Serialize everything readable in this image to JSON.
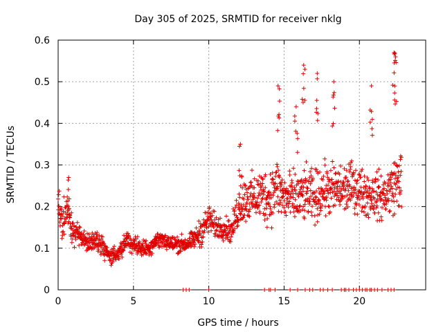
{
  "chart_data": {
    "type": "scatter",
    "title": "Day 305 of 2025, SRMTID for receiver nklg",
    "xlabel": "GPS time / hours",
    "ylabel": "SRMTID / TECUs",
    "xlim": [
      0,
      24.4
    ],
    "ylim": [
      0,
      0.6
    ],
    "xticks": [
      0,
      5,
      10,
      15,
      20
    ],
    "yticks": [
      0,
      0.1,
      0.2,
      0.3,
      0.4,
      0.5,
      0.6
    ],
    "grid": true,
    "marker": "plus",
    "color": "#e00000",
    "series": [
      {
        "name": "SRMTID",
        "profile_x": [
          0,
          0.3,
          0.6,
          1.0,
          1.5,
          2.0,
          2.5,
          3.0,
          3.5,
          4.0,
          4.5,
          5.0,
          5.5,
          6.0,
          6.5,
          7.0,
          7.5,
          8.0,
          8.5,
          9.0,
          9.5,
          10.0,
          10.5,
          11.0,
          11.5,
          12.0,
          12.5,
          13.0,
          13.5,
          14.0,
          14.5,
          15.0,
          15.5,
          16.0,
          16.5,
          17.0,
          17.5,
          18.0,
          18.5,
          19.0,
          19.5,
          20.0,
          20.5,
          21.0,
          21.5,
          22.0,
          22.5,
          22.8
        ],
        "profile_median": [
          0.2,
          0.16,
          0.19,
          0.14,
          0.13,
          0.11,
          0.12,
          0.1,
          0.08,
          0.08,
          0.12,
          0.11,
          0.1,
          0.1,
          0.12,
          0.12,
          0.11,
          0.11,
          0.11,
          0.12,
          0.14,
          0.17,
          0.15,
          0.15,
          0.14,
          0.2,
          0.22,
          0.22,
          0.23,
          0.22,
          0.25,
          0.22,
          0.22,
          0.22,
          0.23,
          0.22,
          0.24,
          0.24,
          0.24,
          0.24,
          0.25,
          0.24,
          0.23,
          0.23,
          0.22,
          0.24,
          0.26,
          0.27
        ],
        "profile_spread": [
          0.05,
          0.06,
          0.06,
          0.05,
          0.04,
          0.04,
          0.04,
          0.04,
          0.03,
          0.03,
          0.03,
          0.03,
          0.03,
          0.03,
          0.03,
          0.03,
          0.03,
          0.03,
          0.03,
          0.03,
          0.05,
          0.05,
          0.04,
          0.04,
          0.04,
          0.07,
          0.08,
          0.08,
          0.09,
          0.1,
          0.1,
          0.09,
          0.09,
          0.09,
          0.09,
          0.09,
          0.09,
          0.09,
          0.09,
          0.09,
          0.08,
          0.08,
          0.08,
          0.08,
          0.08,
          0.09,
          0.1,
          0.1
        ],
        "peaks": [
          {
            "x": 14.6,
            "y": 0.49
          },
          {
            "x": 16.3,
            "y": 0.54
          },
          {
            "x": 17.2,
            "y": 0.52
          },
          {
            "x": 20.8,
            "y": 0.49
          },
          {
            "x": 22.3,
            "y": 0.57
          },
          {
            "x": 22.4,
            "y": 0.56
          },
          {
            "x": 15.8,
            "y": 0.44
          },
          {
            "x": 18.3,
            "y": 0.5
          },
          {
            "x": 12.1,
            "y": 0.35
          },
          {
            "x": 0.7,
            "y": 0.27
          }
        ],
        "zero_values_x": [
          8.3,
          8.5,
          8.7,
          10.0,
          13.7,
          14.0,
          14.1,
          14.4,
          15.4,
          15.9,
          16.4,
          16.7,
          16.9,
          17.4,
          17.6,
          17.9,
          18.2,
          18.8,
          19.0,
          19.1,
          19.3,
          19.6,
          19.8,
          20.0,
          20.2,
          20.4,
          20.5,
          20.7,
          20.8,
          21.0,
          21.2,
          21.5,
          21.9,
          22.1,
          22.3
        ]
      }
    ]
  }
}
